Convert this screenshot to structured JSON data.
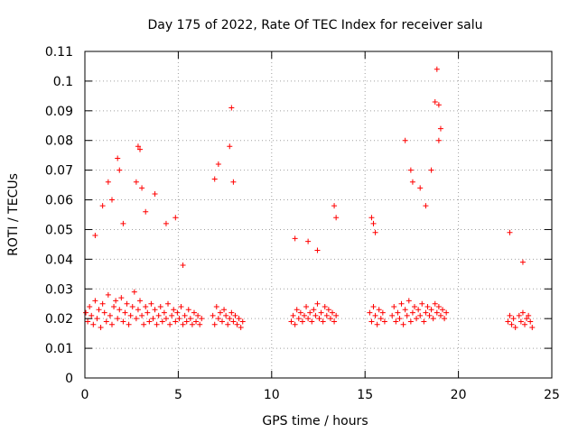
{
  "chart_data": {
    "type": "scatter",
    "title": "Day 175 of 2022, Rate Of TEC Index for receiver salu",
    "xlabel": "GPS time / hours",
    "ylabel": "ROTI / TECUs",
    "xlim": [
      0,
      25
    ],
    "ylim": [
      0,
      0.11
    ],
    "x_ticks": [
      0,
      5,
      10,
      15,
      20,
      25
    ],
    "x_tick_labels": [
      "0",
      "5",
      "10",
      "15",
      "20",
      "25"
    ],
    "y_ticks": [
      0,
      0.01,
      0.02,
      0.03,
      0.04,
      0.05,
      0.06,
      0.07,
      0.08,
      0.09,
      0.1,
      0.11
    ],
    "y_tick_labels": [
      "0",
      "0.01",
      "0.02",
      "0.03",
      "0.04",
      "0.05",
      "0.06",
      "0.07",
      "0.08",
      "0.09",
      "0.1",
      "0.11"
    ],
    "grid": true,
    "marker": "+",
    "color": "#ff0000",
    "series": [
      {
        "x": [
          0.05,
          0.15,
          0.25,
          0.35,
          0.45,
          0.55,
          0.65,
          0.75,
          0.85,
          0.95,
          1.05,
          1.15,
          1.25,
          1.35,
          1.45,
          1.55,
          1.65,
          1.75,
          1.85,
          1.95,
          2.05,
          2.15,
          2.25,
          2.35,
          2.45,
          2.55,
          2.65,
          2.75,
          2.85,
          2.95,
          3.05,
          3.15,
          3.25,
          3.35,
          3.45,
          3.55,
          3.65,
          3.75,
          3.85,
          3.95,
          4.05,
          4.15,
          4.25,
          4.35,
          4.45,
          4.55,
          4.65,
          4.75,
          4.85,
          4.95,
          5.05,
          5.15,
          5.25,
          5.35,
          5.45,
          5.55,
          5.65,
          5.75,
          5.85,
          5.95,
          6.05,
          6.15,
          6.25,
          6.85,
          6.95,
          7.05,
          7.15,
          7.25,
          7.35,
          7.45,
          7.55,
          7.65,
          7.75,
          7.85,
          7.95,
          8.05,
          8.15,
          8.25,
          8.35,
          8.45,
          11.05,
          11.15,
          11.25,
          11.35,
          11.45,
          11.55,
          11.65,
          11.75,
          11.85,
          11.95,
          12.05,
          12.15,
          12.25,
          12.35,
          12.45,
          12.55,
          12.65,
          12.75,
          12.85,
          12.95,
          13.05,
          13.15,
          13.25,
          13.35,
          13.45,
          15.25,
          15.35,
          15.45,
          15.55,
          15.65,
          15.75,
          15.85,
          15.95,
          16.05,
          16.45,
          16.55,
          16.65,
          16.75,
          16.85,
          16.95,
          17.05,
          17.15,
          17.25,
          17.35,
          17.45,
          17.55,
          17.65,
          17.75,
          17.85,
          17.95,
          18.05,
          18.15,
          18.25,
          18.35,
          18.45,
          18.55,
          18.65,
          18.75,
          18.85,
          18.95,
          19.05,
          19.15,
          19.25,
          19.35,
          22.65,
          22.75,
          22.85,
          22.95,
          23.05,
          23.25,
          23.35,
          23.45,
          23.55,
          23.65,
          23.75,
          23.85,
          23.95,
          0.55,
          0.95,
          1.25,
          1.45,
          1.75,
          1.85,
          2.05,
          2.75,
          2.85,
          2.95,
          3.05,
          3.25,
          3.75,
          4.35,
          4.85,
          5.25,
          6.95,
          7.15,
          7.75,
          7.85,
          7.95,
          11.25,
          11.95,
          12.45,
          13.35,
          13.45,
          15.35,
          15.45,
          15.55,
          17.15,
          17.45,
          17.55,
          17.95,
          18.25,
          18.55,
          18.75,
          18.85,
          18.95,
          18.95,
          19.05,
          22.75,
          23.45
        ],
        "y": [
          0.022,
          0.019,
          0.024,
          0.021,
          0.018,
          0.026,
          0.02,
          0.023,
          0.017,
          0.025,
          0.022,
          0.019,
          0.028,
          0.021,
          0.018,
          0.024,
          0.026,
          0.02,
          0.023,
          0.027,
          0.019,
          0.022,
          0.025,
          0.018,
          0.021,
          0.024,
          0.029,
          0.02,
          0.023,
          0.026,
          0.021,
          0.018,
          0.024,
          0.022,
          0.019,
          0.025,
          0.02,
          0.023,
          0.018,
          0.021,
          0.024,
          0.019,
          0.022,
          0.02,
          0.025,
          0.018,
          0.021,
          0.023,
          0.019,
          0.022,
          0.02,
          0.024,
          0.018,
          0.021,
          0.019,
          0.023,
          0.02,
          0.018,
          0.022,
          0.019,
          0.021,
          0.018,
          0.02,
          0.021,
          0.018,
          0.024,
          0.02,
          0.022,
          0.019,
          0.023,
          0.021,
          0.018,
          0.02,
          0.022,
          0.019,
          0.021,
          0.018,
          0.02,
          0.017,
          0.019,
          0.019,
          0.021,
          0.018,
          0.023,
          0.02,
          0.022,
          0.019,
          0.021,
          0.024,
          0.02,
          0.022,
          0.019,
          0.023,
          0.021,
          0.025,
          0.02,
          0.022,
          0.019,
          0.024,
          0.021,
          0.023,
          0.02,
          0.022,
          0.019,
          0.021,
          0.022,
          0.019,
          0.024,
          0.021,
          0.018,
          0.023,
          0.02,
          0.022,
          0.019,
          0.021,
          0.024,
          0.019,
          0.022,
          0.02,
          0.025,
          0.018,
          0.023,
          0.021,
          0.026,
          0.019,
          0.022,
          0.024,
          0.02,
          0.023,
          0.021,
          0.025,
          0.019,
          0.022,
          0.024,
          0.021,
          0.023,
          0.02,
          0.025,
          0.022,
          0.024,
          0.021,
          0.023,
          0.02,
          0.022,
          0.019,
          0.021,
          0.018,
          0.02,
          0.017,
          0.021,
          0.019,
          0.022,
          0.018,
          0.02,
          0.021,
          0.019,
          0.017,
          0.048,
          0.058,
          0.066,
          0.06,
          0.074,
          0.07,
          0.052,
          0.066,
          0.078,
          0.077,
          0.064,
          0.056,
          0.062,
          0.052,
          0.054,
          0.038,
          0.067,
          0.072,
          0.078,
          0.091,
          0.066,
          0.047,
          0.046,
          0.043,
          0.058,
          0.054,
          0.054,
          0.052,
          0.049,
          0.08,
          0.07,
          0.066,
          0.064,
          0.058,
          0.07,
          0.093,
          0.104,
          0.092,
          0.08,
          0.084,
          0.049,
          0.039
        ]
      }
    ]
  }
}
